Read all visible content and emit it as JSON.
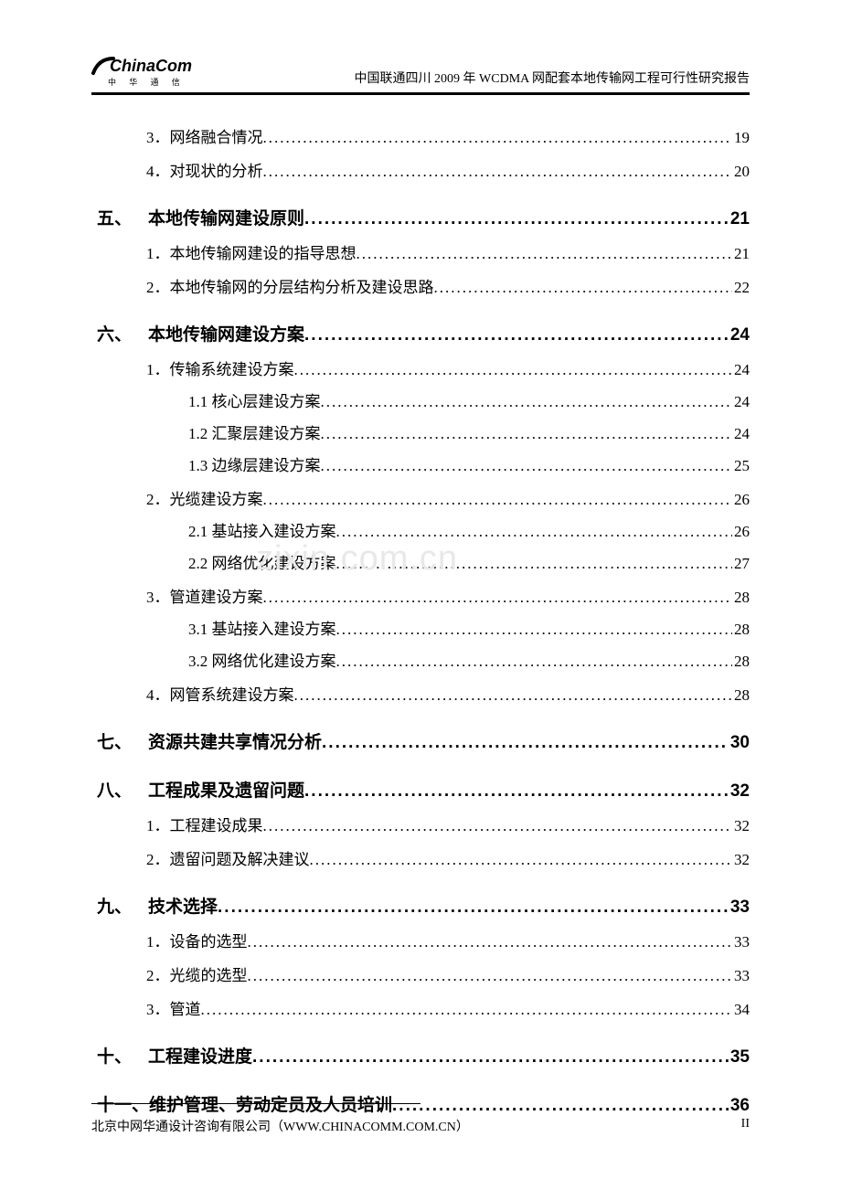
{
  "header": {
    "logo_main": "ChinaComm",
    "logo_sub": "中 华 通 信",
    "title": "中国联通四川 2009 年 WCDMA 网配套本地传输网工程可行性研究报告"
  },
  "watermark": "zixin.com.cn",
  "toc": [
    {
      "level": 2,
      "label": "3．网络融合情况",
      "page": "19"
    },
    {
      "level": 2,
      "label": "4．对现状的分析",
      "page": "20"
    },
    {
      "level": 1,
      "num": "五、",
      "label": "本地传输网建设原则",
      "page": "21"
    },
    {
      "level": 2,
      "label": "1．本地传输网建设的指导思想",
      "page": "21"
    },
    {
      "level": 2,
      "label": "2．本地传输网的分层结构分析及建设思路",
      "page": "22"
    },
    {
      "level": 1,
      "num": "六、",
      "label": "本地传输网建设方案",
      "page": "24"
    },
    {
      "level": 2,
      "label": "1．传输系统建设方案",
      "page": "24"
    },
    {
      "level": 3,
      "label": "1.1 核心层建设方案",
      "page": "24"
    },
    {
      "level": 3,
      "label": "1.2 汇聚层建设方案",
      "page": "24"
    },
    {
      "level": 3,
      "label": "1.3 边缘层建设方案",
      "page": "25"
    },
    {
      "level": 2,
      "label": "2．光缆建设方案",
      "page": "26"
    },
    {
      "level": 3,
      "label": "2.1 基站接入建设方案",
      "page": "26"
    },
    {
      "level": 3,
      "label": "2.2 网络优化建设方案",
      "page": "27"
    },
    {
      "level": 2,
      "label": "3．管道建设方案",
      "page": "28"
    },
    {
      "level": 3,
      "label": "3.1 基站接入建设方案",
      "page": "28"
    },
    {
      "level": 3,
      "label": "3.2 网络优化建设方案",
      "page": "28"
    },
    {
      "level": 2,
      "label": "4．网管系统建设方案",
      "page": "28"
    },
    {
      "level": 1,
      "num": "七、",
      "label": "资源共建共享情况分析",
      "page": "30"
    },
    {
      "level": 1,
      "num": "八、",
      "label": "工程成果及遗留问题",
      "page": "32"
    },
    {
      "level": 2,
      "label": "1．工程建设成果",
      "page": "32"
    },
    {
      "level": 2,
      "label": "2．遗留问题及解决建议",
      "page": "32"
    },
    {
      "level": 1,
      "num": "九、",
      "label": "技术选择",
      "page": "33"
    },
    {
      "level": 2,
      "label": "1．设备的选型",
      "page": "33"
    },
    {
      "level": 2,
      "label": "2．光缆的选型",
      "page": "33"
    },
    {
      "level": 2,
      "label": "3．管道",
      "page": "34"
    },
    {
      "level": 1,
      "num": "十、",
      "label": "工程建设进度",
      "page": "35"
    },
    {
      "level": 1,
      "num": "十一、",
      "label": "维护管理、劳动定员及人员培训",
      "page": "36"
    }
  ],
  "footer": {
    "left": "北京中网华通设计咨询有限公司（WWW.CHINACOMM.COM.CN）",
    "right": "II"
  },
  "colors": {
    "text": "#000000",
    "background": "#ffffff",
    "watermark": "#e8e8e8"
  }
}
